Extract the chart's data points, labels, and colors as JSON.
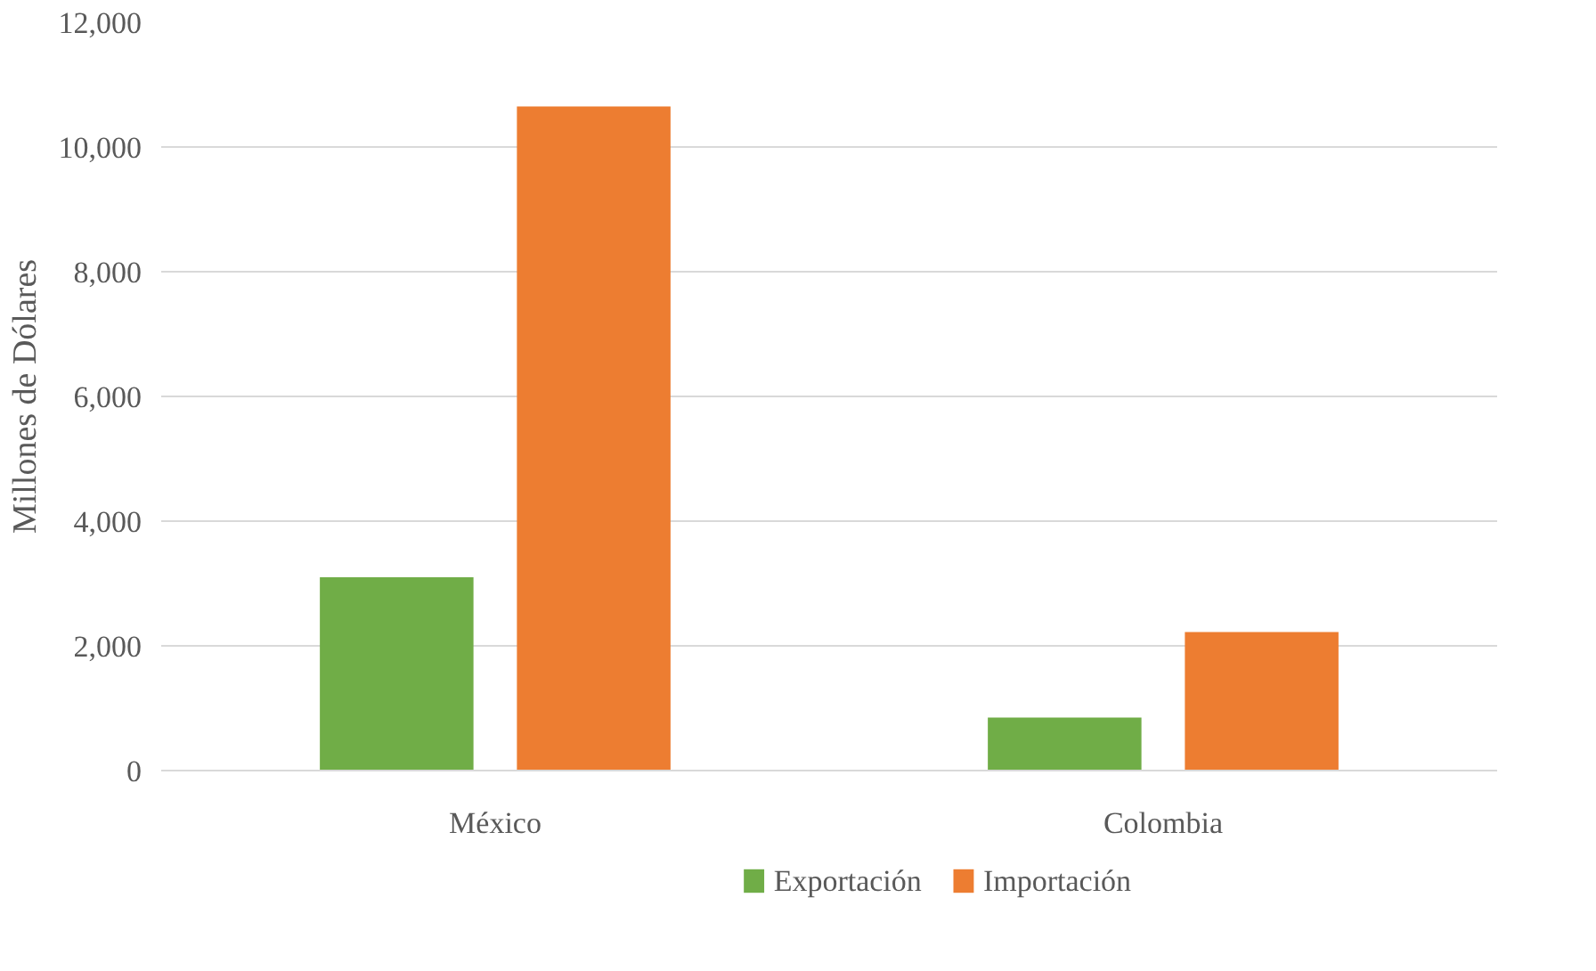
{
  "chart_data": {
    "type": "bar",
    "categories": [
      "México",
      "Colombia"
    ],
    "ylabel": "Millones de Dólares",
    "series": [
      {
        "name": "Exportación",
        "color": "#70ad47",
        "values": [
          3100,
          850
        ]
      },
      {
        "name": "Importación",
        "color": "#ed7d31",
        "values": [
          10650,
          2220
        ]
      }
    ],
    "ylim": [
      0,
      12000
    ],
    "yticks": [
      {
        "value": 0,
        "label": "0"
      },
      {
        "value": 2000,
        "label": "2,000"
      },
      {
        "value": 4000,
        "label": "4,000"
      },
      {
        "value": 6000,
        "label": "6,000"
      },
      {
        "value": 8000,
        "label": "8,000"
      },
      {
        "value": 10000,
        "label": "10,000"
      },
      {
        "value": 12000,
        "label": "12,000"
      }
    ],
    "grid": "y",
    "legend": "bottom"
  }
}
